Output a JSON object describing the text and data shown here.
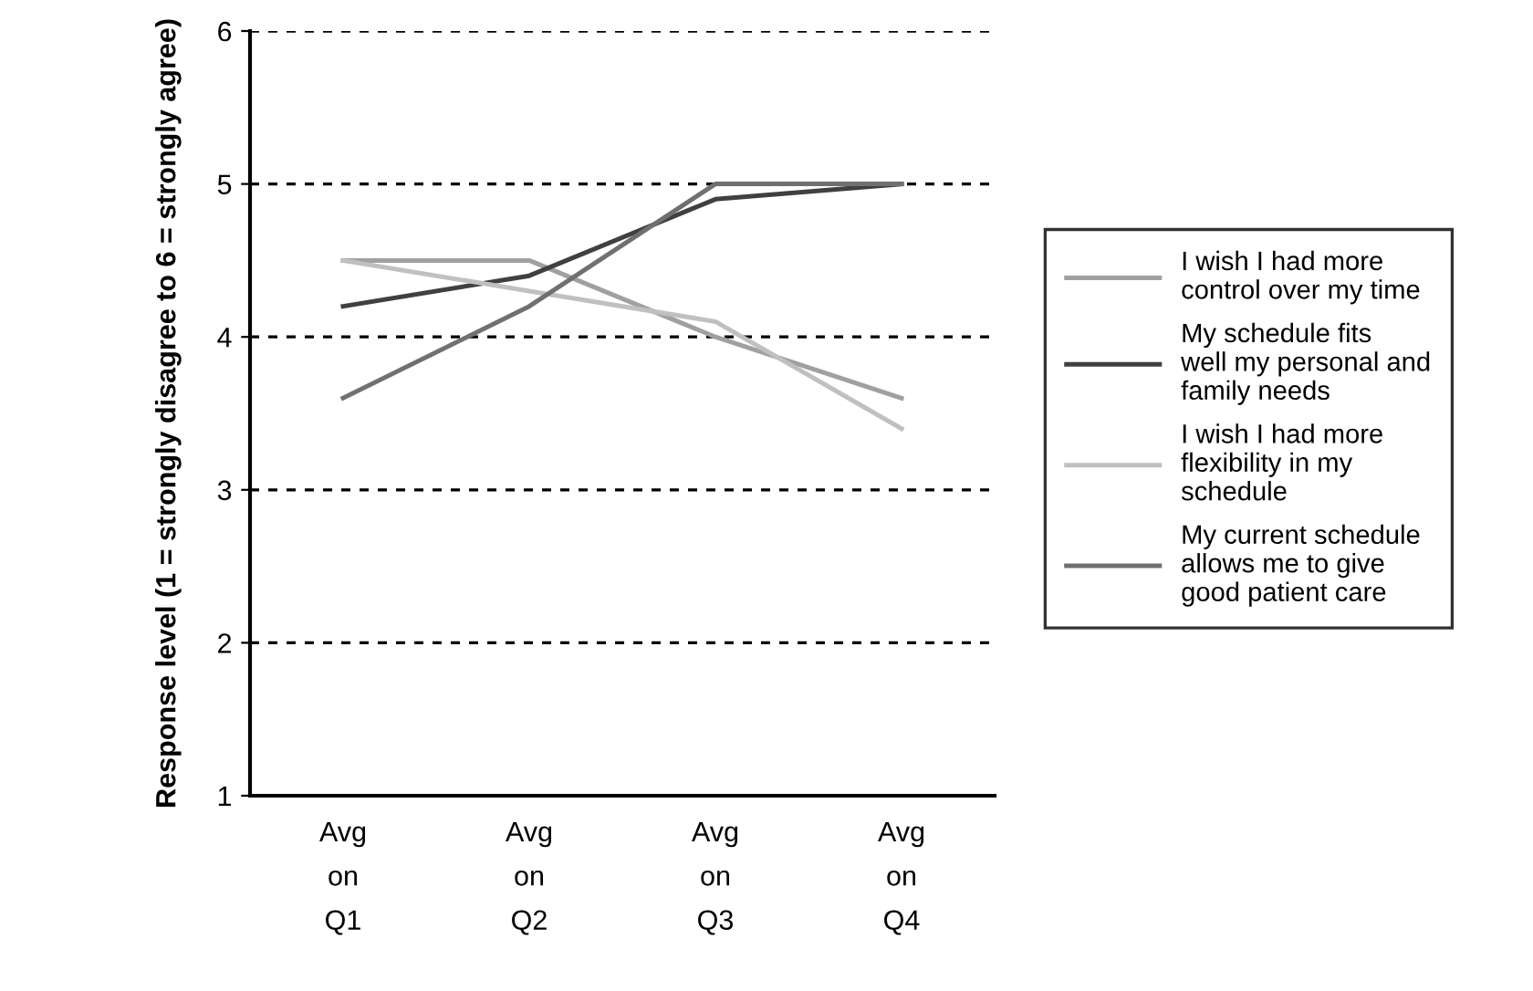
{
  "chart_data": {
    "type": "line",
    "ylabel": "Response level (1 = strongly disagree to 6 = strongly agree)",
    "categories": [
      "Avg\non\nQ1",
      "Avg\non\nQ2",
      "Avg\non\nQ3",
      "Avg\non\nQ4"
    ],
    "series": [
      {
        "name": "I wish I had more control over my time",
        "color": "#a0a0a0",
        "values": [
          4.5,
          4.5,
          4.0,
          3.6
        ]
      },
      {
        "name": "My schedule fits well my personal and family needs",
        "color": "#404040",
        "values": [
          4.2,
          4.4,
          4.9,
          5.0
        ]
      },
      {
        "name": "I wish I had more flexibility in my schedule",
        "color": "#c0c0c0",
        "values": [
          4.5,
          4.3,
          4.1,
          3.4
        ]
      },
      {
        "name": "My current schedule allows me to give good patient care",
        "color": "#707070",
        "values": [
          3.6,
          4.2,
          5.0,
          5.0
        ]
      }
    ],
    "ylim": [
      1,
      6
    ],
    "yticks": [
      1,
      2,
      3,
      4,
      5,
      6
    ],
    "grid": "y",
    "legend": "right",
    "marker": "none",
    "line_style": "solid"
  }
}
